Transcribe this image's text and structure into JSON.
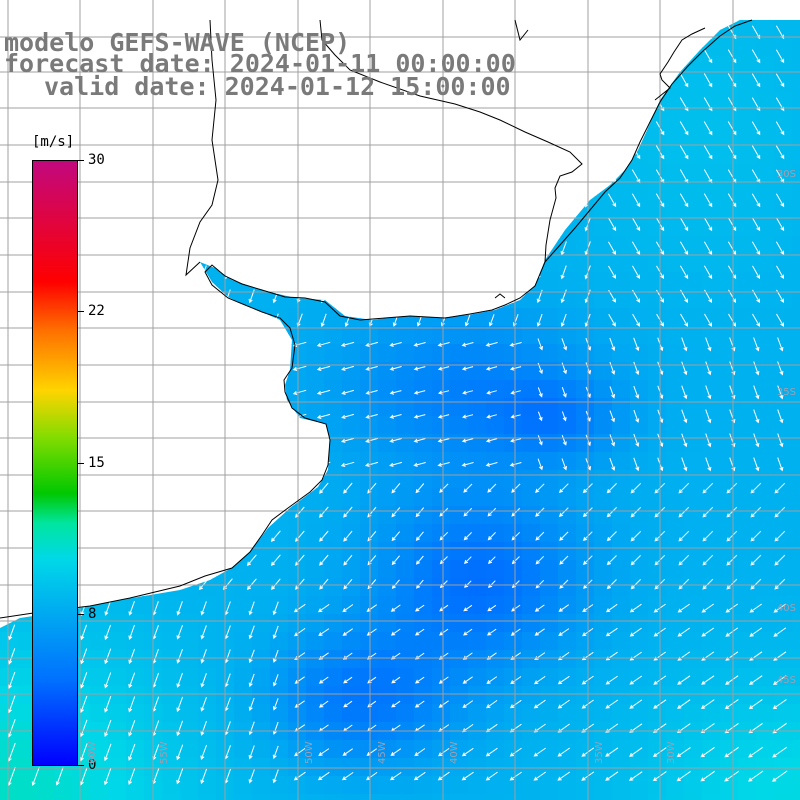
{
  "header": {
    "model_line": "modelo GEFS-WAVE (NCEP)",
    "forecast_line": "forecast date: 2024-01-11 00:00:00",
    "valid_line": "valid date: 2024-01-12 15:00:00"
  },
  "colorbar": {
    "unit": "[m/s]",
    "ticks": [
      "30",
      "22",
      "15",
      "8",
      "0"
    ],
    "tick_values": [
      30,
      22,
      15,
      8,
      0
    ],
    "min": 0,
    "max": 30,
    "colors": [
      "#0000ff",
      "#0070ff",
      "#00aef0",
      "#00d8e8",
      "#00e6a0",
      "#00c800",
      "#7fdc00",
      "#ffd400",
      "#ff6f00",
      "#ff0000",
      "#c2087e"
    ]
  },
  "map": {
    "field": "wind speed",
    "land_color": "#ffffff",
    "grid_color": "#a0a0a0",
    "coast_color": "#000000",
    "arrow_color": "#ffffff",
    "lat_labels": [
      "30S",
      "35S",
      "40S",
      "45S"
    ],
    "lon_labels": [
      "60W",
      "55W",
      "50W",
      "45W",
      "40W",
      "35W",
      "30W"
    ]
  }
}
